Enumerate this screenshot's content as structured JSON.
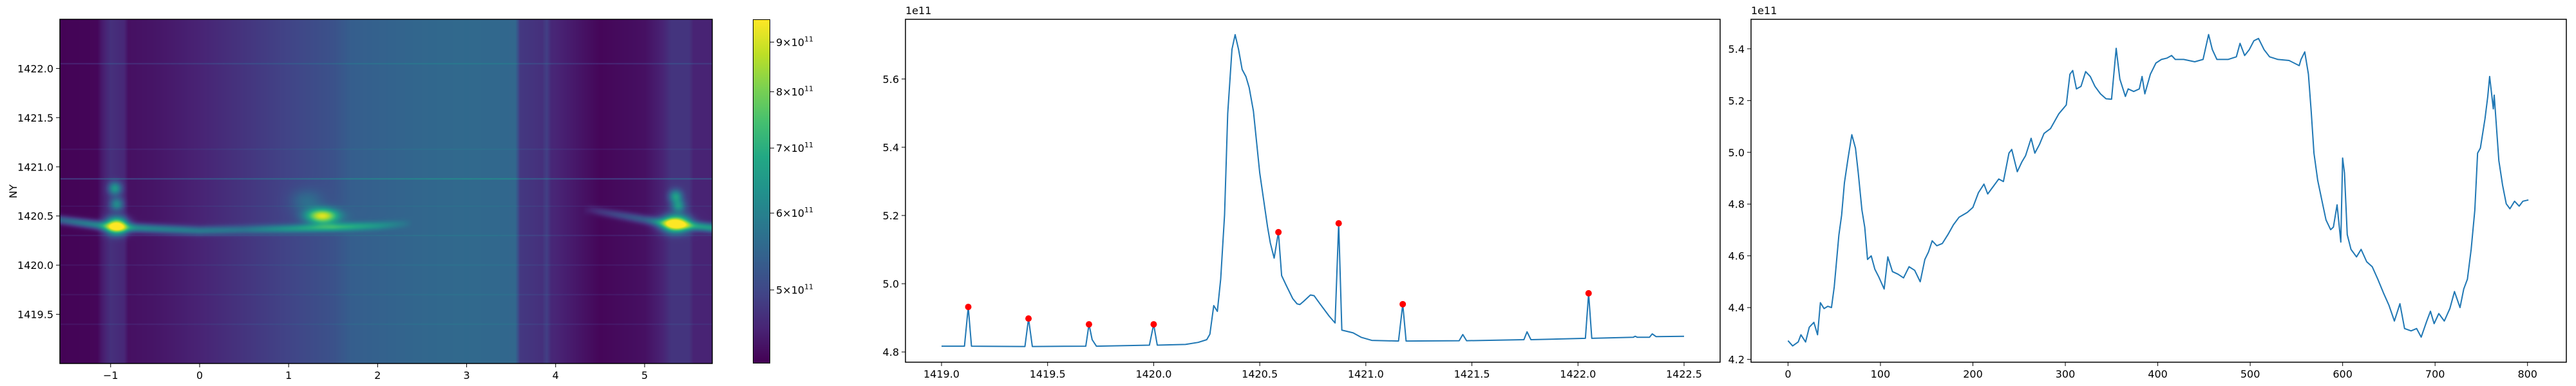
{
  "chart_data": [
    {
      "type": "heatmap",
      "ylabel": "NY",
      "xlim": [
        -1.57,
        5.76
      ],
      "ylim": [
        1419.0,
        1422.5
      ],
      "xticks": [
        {
          "value": -1,
          "label": "−1"
        },
        {
          "value": 0,
          "label": "0"
        },
        {
          "value": 1,
          "label": "1"
        },
        {
          "value": 2,
          "label": "2"
        },
        {
          "value": 3,
          "label": "3"
        },
        {
          "value": 4,
          "label": "4"
        },
        {
          "value": 5,
          "label": "5"
        }
      ],
      "yticks": [
        {
          "value": 1419.5,
          "label": "1419.5"
        },
        {
          "value": 1420.0,
          "label": "1420.0"
        },
        {
          "value": 1420.5,
          "label": "1420.5"
        },
        {
          "value": 1421.0,
          "label": "1421.0"
        },
        {
          "value": 1421.5,
          "label": "1421.5"
        },
        {
          "value": 1422.0,
          "label": "1422.0"
        }
      ],
      "colormap": "viridis",
      "colorbar": {
        "scale": "log",
        "range": [
          420000000000.0,
          950000000000.0
        ],
        "ticks": [
          {
            "value": 500000000000.0,
            "base": "5×10",
            "exp": "11"
          },
          {
            "value": 600000000000.0,
            "base": "6×10",
            "exp": "11"
          },
          {
            "value": 700000000000.0,
            "base": "7×10",
            "exp": "11"
          },
          {
            "value": 800000000000.0,
            "base": "8×10",
            "exp": "11"
          },
          {
            "value": 900000000000.0,
            "base": "9×10",
            "exp": "11"
          }
        ]
      },
      "features": {
        "column_background_1e11": [
          [
            -1.57,
            4.22
          ],
          [
            -1.15,
            4.25
          ],
          [
            -1.1,
            4.45
          ],
          [
            -1.0,
            4.7
          ],
          [
            -0.85,
            4.6
          ],
          [
            -0.8,
            4.35
          ],
          [
            -0.5,
            4.4
          ],
          [
            0,
            4.55
          ],
          [
            0.5,
            4.75
          ],
          [
            1.0,
            4.95
          ],
          [
            1.5,
            5.15
          ],
          [
            1.7,
            5.35
          ],
          [
            2.5,
            5.5
          ],
          [
            3.0,
            5.55
          ],
          [
            3.55,
            5.5
          ],
          [
            3.6,
            4.8
          ],
          [
            3.85,
            4.7
          ],
          [
            3.9,
            4.9
          ],
          [
            3.95,
            4.6
          ],
          [
            4.5,
            4.25
          ],
          [
            5.0,
            4.35
          ],
          [
            5.2,
            4.55
          ],
          [
            5.3,
            4.75
          ],
          [
            5.5,
            4.75
          ],
          [
            5.55,
            4.55
          ],
          [
            5.76,
            4.55
          ]
        ],
        "ridge_center": [
          [
            -1.57,
            1420.46
          ],
          [
            -1.0,
            1420.39
          ],
          [
            0,
            1420.35
          ],
          [
            1.0,
            1420.37
          ],
          [
            2.0,
            1420.4
          ],
          [
            4.4,
            1420.56
          ],
          [
            5.2,
            1420.43
          ],
          [
            5.76,
            1420.38
          ]
        ],
        "ridge_strength_1e11": [
          [
            -1.57,
            1.2
          ],
          [
            -1.0,
            2.0
          ],
          [
            -0.5,
            1.6
          ],
          [
            0.5,
            1.0
          ],
          [
            1.0,
            1.5
          ],
          [
            1.5,
            2.0
          ],
          [
            2.0,
            1.0
          ],
          [
            2.3,
            0.3
          ],
          [
            2.4,
            0
          ],
          [
            4.3,
            0
          ],
          [
            4.5,
            0.5
          ],
          [
            5.0,
            1.0
          ],
          [
            5.3,
            2.0
          ],
          [
            5.76,
            2.0
          ]
        ],
        "hotspots_1e11": [
          {
            "x": -0.93,
            "y": 1420.4,
            "amp": 4.6
          },
          {
            "x": 1.38,
            "y": 1420.5,
            "amp": 4.0
          },
          {
            "x": 5.35,
            "y": 1420.42,
            "amp": 5.0
          },
          {
            "x": -0.95,
            "y": 1420.78,
            "amp": 1.8
          },
          {
            "x": -0.93,
            "y": 1420.62,
            "amp": 1.5
          },
          {
            "x": 5.35,
            "y": 1420.7,
            "amp": 1.8
          },
          {
            "x": 5.38,
            "y": 1420.6,
            "amp": 1.6
          },
          {
            "x": 1.2,
            "y": 1420.65,
            "amp": 0.6
          }
        ],
        "row_lines": [
          [
            1422.05,
            0.3
          ],
          [
            1421.18,
            0.15
          ],
          [
            1420.88,
            0.6
          ],
          [
            1420.6,
            0.25
          ],
          [
            1420.3,
            0.2
          ],
          [
            1420.0,
            0.15
          ],
          [
            1419.7,
            0.15
          ],
          [
            1419.4,
            0.15
          ]
        ]
      }
    },
    {
      "type": "line",
      "offset_label": "1e11",
      "xlim": [
        1418.83,
        1422.67
      ],
      "ylim": [
        4.77,
        5.775
      ],
      "xticks": [
        {
          "value": 1419.0,
          "label": "1419.0"
        },
        {
          "value": 1419.5,
          "label": "1419.5"
        },
        {
          "value": 1420.0,
          "label": "1420.0"
        },
        {
          "value": 1420.5,
          "label": "1420.5"
        },
        {
          "value": 1421.0,
          "label": "1421.0"
        },
        {
          "value": 1421.5,
          "label": "1421.5"
        },
        {
          "value": 1422.0,
          "label": "1422.0"
        },
        {
          "value": 1422.5,
          "label": "1422.5"
        }
      ],
      "yticks": [
        {
          "value": 4.8,
          "label": "4.8"
        },
        {
          "value": 5.0,
          "label": "5.0"
        },
        {
          "value": 5.2,
          "label": "5.2"
        },
        {
          "value": 5.4,
          "label": "5.4"
        },
        {
          "value": 5.6,
          "label": "5.6"
        }
      ],
      "line_color": "#1f77b4",
      "x": [
        1419.0,
        1419.108,
        1419.126,
        1419.141,
        1419.393,
        1419.41,
        1419.428,
        1419.68,
        1419.695,
        1419.71,
        1419.73,
        1419.98,
        1420.0,
        1420.017,
        1420.15,
        1420.21,
        1420.25,
        1420.265,
        1420.283,
        1420.3,
        1420.316,
        1420.334,
        1420.349,
        1420.369,
        1420.384,
        1420.4,
        1420.417,
        1420.435,
        1420.45,
        1420.47,
        1420.5,
        1420.537,
        1420.55,
        1420.568,
        1420.588,
        1420.603,
        1420.625,
        1420.656,
        1420.676,
        1420.689,
        1420.706,
        1420.739,
        1420.756,
        1420.784,
        1420.827,
        1420.855,
        1420.872,
        1420.887,
        1420.94,
        1420.978,
        1421.028,
        1421.154,
        1421.174,
        1421.19,
        1421.44,
        1421.457,
        1421.475,
        1421.745,
        1421.76,
        1421.778,
        1422.035,
        1422.05,
        1422.065,
        1422.26,
        1422.27,
        1422.28,
        1422.337,
        1422.35,
        1422.368,
        1422.5
      ],
      "y": [
        4.817,
        4.817,
        4.932,
        4.817,
        4.816,
        4.898,
        4.816,
        4.817,
        4.881,
        4.836,
        4.817,
        4.82,
        4.881,
        4.82,
        4.822,
        4.828,
        4.836,
        4.852,
        4.936,
        4.919,
        5.014,
        5.202,
        5.499,
        5.687,
        5.73,
        5.687,
        5.628,
        5.607,
        5.575,
        5.506,
        5.325,
        5.166,
        5.119,
        5.075,
        5.151,
        5.024,
        4.995,
        4.956,
        4.941,
        4.939,
        4.948,
        4.967,
        4.965,
        4.941,
        4.905,
        4.885,
        5.177,
        4.864,
        4.856,
        4.843,
        4.834,
        4.832,
        4.94,
        4.832,
        4.833,
        4.851,
        4.833,
        4.836,
        4.859,
        4.836,
        4.84,
        4.972,
        4.84,
        4.843,
        4.846,
        4.843,
        4.843,
        4.853,
        4.845,
        4.846
      ],
      "markers": {
        "color": "#ff0000",
        "x": [
          1419.126,
          1419.41,
          1419.695,
          1420.0,
          1420.588,
          1420.872,
          1421.174,
          1422.05
        ],
        "y": [
          4.932,
          4.898,
          4.881,
          4.881,
          5.151,
          5.177,
          4.94,
          4.972
        ]
      }
    },
    {
      "type": "line",
      "offset_label": "1e11",
      "xlim": [
        -40,
        842
      ],
      "ylim": [
        4.189,
        5.514
      ],
      "xticks": [
        {
          "value": 0,
          "label": "0"
        },
        {
          "value": 100,
          "label": "100"
        },
        {
          "value": 200,
          "label": "200"
        },
        {
          "value": 300,
          "label": "300"
        },
        {
          "value": 400,
          "label": "400"
        },
        {
          "value": 500,
          "label": "500"
        },
        {
          "value": 600,
          "label": "600"
        },
        {
          "value": 700,
          "label": "700"
        },
        {
          "value": 800,
          "label": "800"
        }
      ],
      "yticks": [
        {
          "value": 4.2,
          "label": "4.2"
        },
        {
          "value": 4.4,
          "label": "4.4"
        },
        {
          "value": 4.6,
          "label": "4.6"
        },
        {
          "value": 4.8,
          "label": "4.8"
        },
        {
          "value": 5.0,
          "label": "5.0"
        },
        {
          "value": 5.2,
          "label": "5.2"
        },
        {
          "value": 5.4,
          "label": "5.4"
        }
      ],
      "line_color": "#1f77b4",
      "x": [
        0,
        5,
        11,
        14,
        19,
        23,
        28,
        32,
        35,
        39,
        43,
        47,
        50,
        55,
        58,
        61,
        65,
        69,
        73,
        76,
        80,
        83,
        86,
        90,
        94,
        98,
        104,
        108,
        113,
        119,
        125,
        131,
        137,
        143,
        148,
        152,
        156,
        161,
        167,
        173,
        179,
        185,
        194,
        200,
        206,
        212,
        216,
        222,
        228,
        233,
        239,
        242,
        248,
        253,
        257,
        263,
        267,
        272,
        277,
        284,
        293,
        301,
        305,
        308,
        312,
        317,
        322,
        327,
        332,
        338,
        344,
        350,
        355,
        359,
        365,
        368,
        374,
        380,
        383,
        386,
        392,
        398,
        404,
        410,
        415,
        419,
        428,
        440,
        449,
        455,
        459,
        464,
        476,
        485,
        489,
        494,
        499,
        504,
        509,
        515,
        521,
        530,
        542,
        553,
        555,
        559,
        563,
        566,
        569,
        573,
        578,
        582,
        587,
        590,
        594,
        598,
        600,
        602,
        605,
        609,
        615,
        620,
        626,
        632,
        638,
        644,
        650,
        656,
        662,
        667,
        674,
        680,
        685,
        691,
        695,
        699,
        704,
        710,
        716,
        721,
        727,
        731,
        735,
        739,
        743,
        746,
        749,
        754,
        757,
        759,
        763,
        764,
        769,
        773,
        777,
        781,
        786,
        791,
        795,
        801
      ],
      "y": [
        4.272,
        4.252,
        4.267,
        4.295,
        4.267,
        4.324,
        4.343,
        4.295,
        4.419,
        4.396,
        4.405,
        4.4,
        4.48,
        4.68,
        4.758,
        4.882,
        4.978,
        5.068,
        5.016,
        4.92,
        4.777,
        4.71,
        4.586,
        4.6,
        4.548,
        4.52,
        4.472,
        4.596,
        4.539,
        4.529,
        4.515,
        4.558,
        4.544,
        4.5,
        4.586,
        4.615,
        4.658,
        4.639,
        4.648,
        4.682,
        4.72,
        4.749,
        4.768,
        4.787,
        4.844,
        4.877,
        4.839,
        4.868,
        4.897,
        4.887,
        4.997,
        5.011,
        4.925,
        4.963,
        4.987,
        5.054,
        4.997,
        5.03,
        5.073,
        5.092,
        5.149,
        5.183,
        5.302,
        5.316,
        5.245,
        5.255,
        5.312,
        5.293,
        5.255,
        5.226,
        5.207,
        5.205,
        5.402,
        5.283,
        5.216,
        5.245,
        5.235,
        5.245,
        5.293,
        5.226,
        5.302,
        5.345,
        5.359,
        5.364,
        5.374,
        5.359,
        5.359,
        5.35,
        5.359,
        5.455,
        5.397,
        5.359,
        5.359,
        5.369,
        5.421,
        5.374,
        5.397,
        5.431,
        5.44,
        5.397,
        5.369,
        5.359,
        5.355,
        5.335,
        5.359,
        5.388,
        5.302,
        5.159,
        4.997,
        4.892,
        4.806,
        4.739,
        4.701,
        4.711,
        4.797,
        4.653,
        4.978,
        4.92,
        4.682,
        4.625,
        4.596,
        4.625,
        4.577,
        4.558,
        4.51,
        4.458,
        4.41,
        4.348,
        4.415,
        4.319,
        4.31,
        4.319,
        4.286,
        4.348,
        4.386,
        4.338,
        4.377,
        4.348,
        4.396,
        4.462,
        4.4,
        4.472,
        4.51,
        4.625,
        4.777,
        4.997,
        5.016,
        5.13,
        5.216,
        5.293,
        5.168,
        5.221,
        4.968,
        4.873,
        4.801,
        4.782,
        4.811,
        4.792,
        4.811,
        4.816
      ]
    }
  ]
}
